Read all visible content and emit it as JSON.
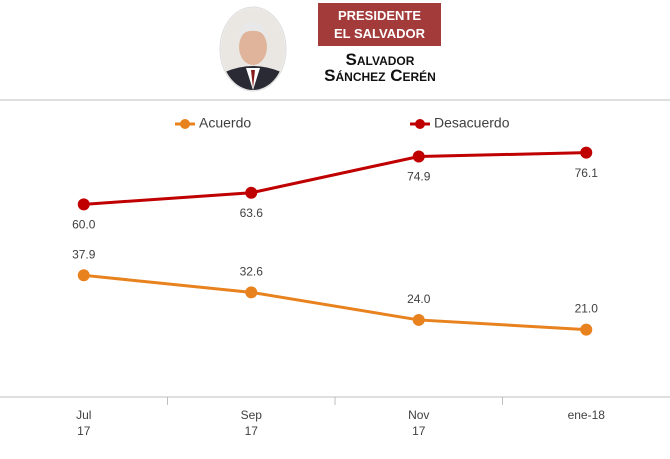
{
  "header": {
    "badge": "PRESIDENTE\nEL SALVADOR",
    "name_line1": "Salvador",
    "name_line2": "Sánchez Cerén"
  },
  "chart_data": {
    "type": "line",
    "categories": [
      "Jul\n17",
      "Sep\n17",
      "Nov\n17",
      "ene-18"
    ],
    "ylim": [
      0,
      92.5
    ],
    "legend": "top",
    "series": [
      {
        "name": "Acuerdo",
        "color": "#e8821e",
        "values": [
          37.9,
          32.6,
          24.0,
          21.0
        ],
        "value_labels": [
          "37.9",
          "32.6",
          "24.0",
          "21.0"
        ],
        "label_position": "above"
      },
      {
        "name": "Desacuerdo",
        "color": "#c00000",
        "values": [
          60.0,
          63.6,
          74.9,
          76.1
        ],
        "value_labels": [
          "60.0",
          "63.6",
          "74.9",
          "76.1"
        ],
        "label_position": "below"
      }
    ]
  }
}
